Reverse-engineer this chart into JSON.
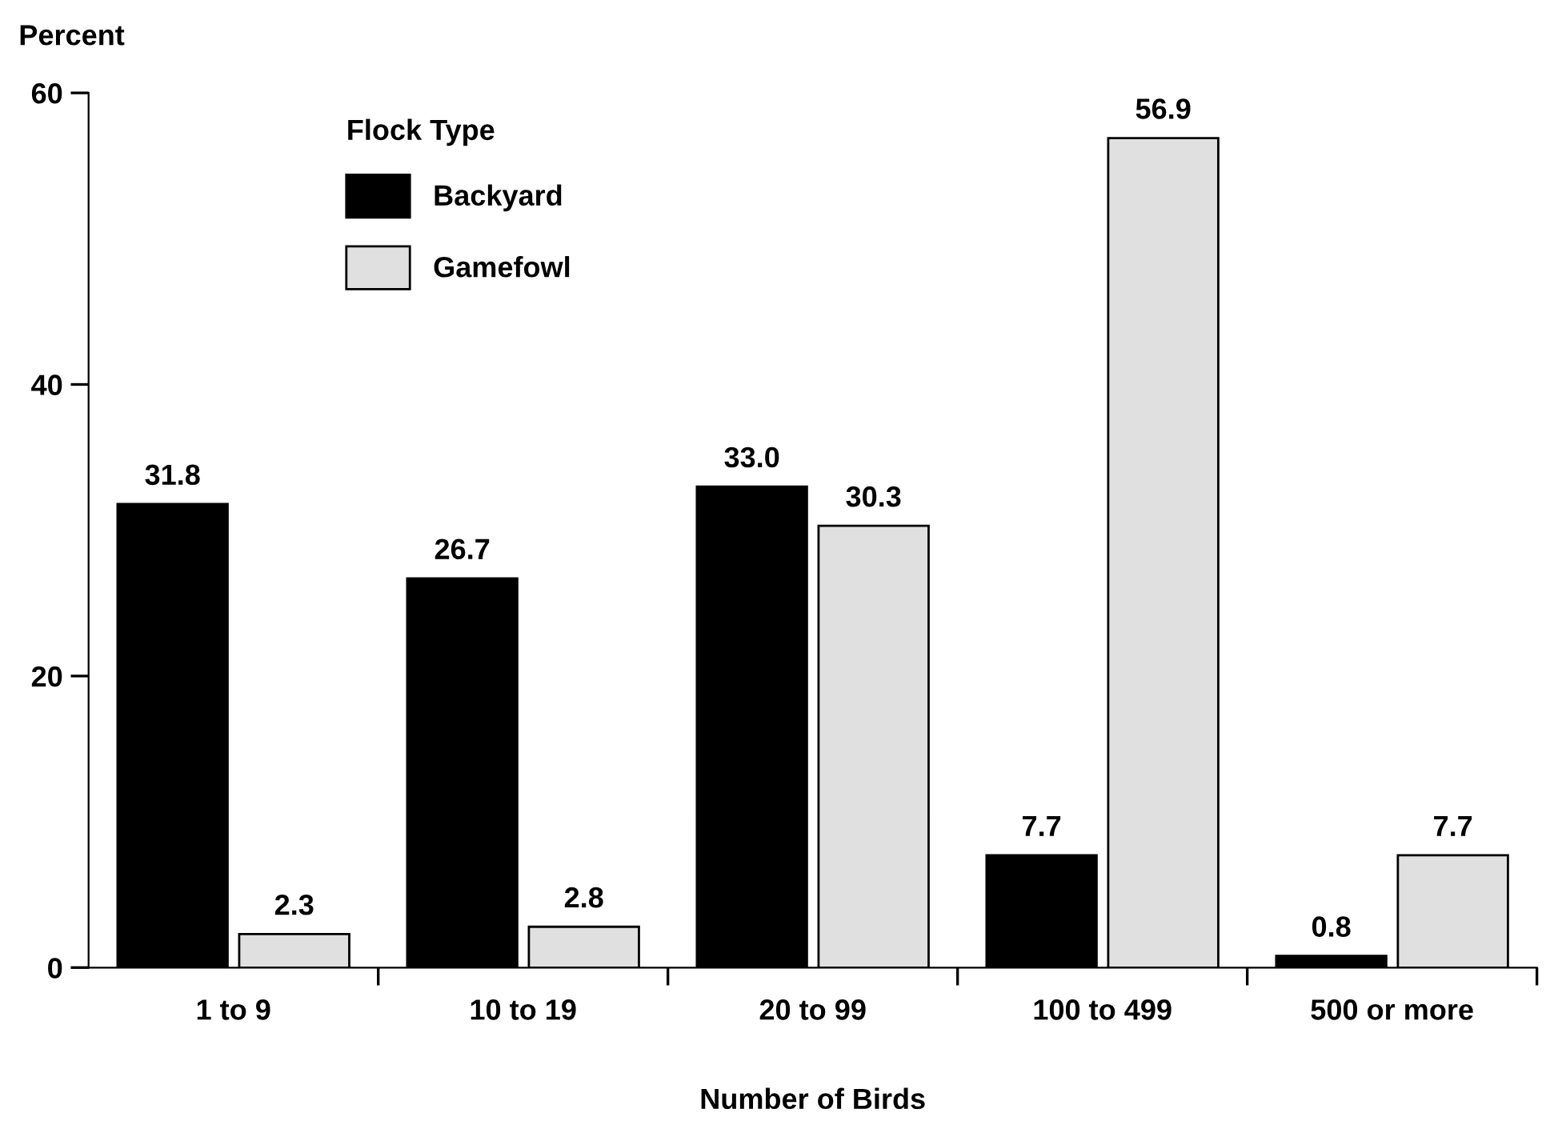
{
  "chart_data": {
    "type": "bar",
    "ylabel": "Percent",
    "xlabel": "Number of Birds",
    "legend_title": "Flock Type",
    "categories": [
      "1 to 9",
      "10 to 19",
      "20 to 99",
      "100 to 499",
      "500 or more"
    ],
    "series": [
      {
        "name": "Backyard",
        "color": "#000000",
        "values": [
          31.8,
          26.7,
          33.0,
          7.7,
          0.8
        ],
        "value_labels": [
          "31.8",
          "26.7",
          "33.0",
          "7.7",
          "0.8"
        ]
      },
      {
        "name": "Gamefowl",
        "color": "#e0e0e0",
        "values": [
          2.3,
          2.8,
          30.3,
          56.9,
          7.7
        ],
        "value_labels": [
          "2.3",
          "2.8",
          "30.3",
          "56.9",
          "7.7"
        ]
      }
    ],
    "ylim": [
      0,
      60
    ],
    "yticks": [
      0,
      20,
      40,
      60
    ],
    "grid": false,
    "legend": "top left"
  }
}
